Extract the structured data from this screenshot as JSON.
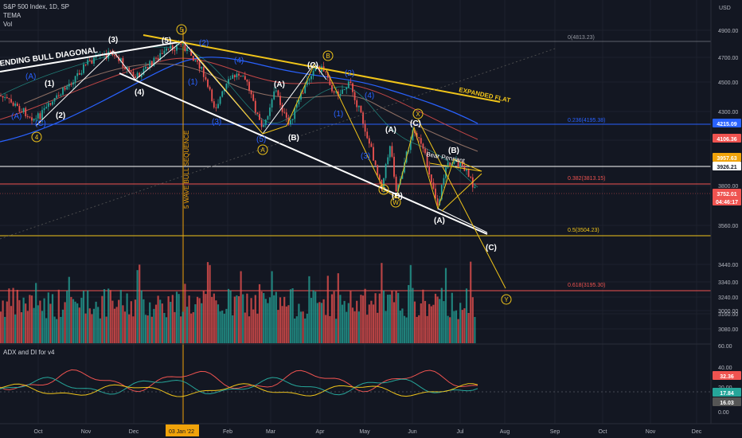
{
  "legend": {
    "symbol": "S&P 500 Index, 1D, SP",
    "tema": "TEMA",
    "vol": "Vol"
  },
  "adx_legend": "ADX and DI for v4",
  "currency": "USD",
  "price_ticks": [
    "4900.00",
    "4700.00",
    "4500.00",
    "4300.00",
    "4100.00",
    "3800.00",
    "3560.00",
    "3440.00",
    "3340.00",
    "3240.00",
    "3160.00",
    "3080.00",
    "3000.00"
  ],
  "adx_ticks": [
    "60.00",
    "40.00",
    "20.00",
    "0.00"
  ],
  "x_ticks": [
    "Oct",
    "Nov",
    "Dec",
    "03 Jan '22",
    "Feb",
    "Mar",
    "Apr",
    "May",
    "Jun",
    "Jul",
    "Aug",
    "Sep",
    "Oct",
    "Nov",
    "Dec"
  ],
  "fib_labels": {
    "f0": "0(4813.23)",
    "f236": "0.236(4195.38)",
    "f382": "0.382(3813.15)",
    "f5": "0.5(3504.23)",
    "f618": "0.618(3195.30)"
  },
  "price_tags": {
    "t1": "4215.09",
    "t2": "4106.36",
    "t3": "3957.63",
    "t4": "3926.21",
    "t5": "3752.01",
    "t6": "04:46:17"
  },
  "adx_tags": {
    "a1": "32.36",
    "a2": "17.84",
    "a3": "16.03"
  },
  "annotations": {
    "ending_diagonal": "ENDING BULL DIAGONAL",
    "expanded_flat": "EXPANDED FLAT",
    "bear_pennant": "Bear Pennant",
    "wave_seq": "5 WAVE BULL SEQUENCE",
    "w1": "(1)",
    "w2": "(2)",
    "w3": "(3)",
    "w4": "(4)",
    "w5": "(5)",
    "w1b": "(1)",
    "w2b": "(2)",
    "wA": "(A)",
    "wB": "(B)",
    "wC": "(C)",
    "wAb": "(A)",
    "wBb": "(B)",
    "wCb": "(C)",
    "wA3": "(A)",
    "wB3": "(B)",
    "wC3": "(C)",
    "b4": "(4)",
    "b1": "(1)",
    "b2": "(2)",
    "b3": "(3)",
    "b5": "(5)",
    "bA": "(A)",
    "bB": "(B)",
    "bC": "(C)",
    "c4": "4",
    "c5": "5",
    "cA": "A",
    "cB": "B",
    "cX": "X",
    "cW": "W",
    "cC": "C",
    "cY": "Y"
  },
  "chart_data": {
    "type": "candlestick",
    "title": "S&P 500 Index, 1D, SP",
    "y_scale": "log",
    "ylim": [
      2960,
      5000
    ],
    "fib_levels": [
      {
        "ratio": 0,
        "price": 4813.23
      },
      {
        "ratio": 0.236,
        "price": 4195.38
      },
      {
        "ratio": 0.382,
        "price": 3813.15
      },
      {
        "ratio": 0.5,
        "price": 3504.23
      },
      {
        "ratio": 0.618,
        "price": 3195.3
      }
    ],
    "last_price": 3752.01,
    "indicators": [
      "TEMA",
      "Vol",
      "ADX and DI for v4"
    ],
    "adx_values": {
      "adx": 32.36,
      "di_plus": 17.84,
      "di_minus": 16.03
    },
    "colors": {
      "up": "#26a69a",
      "down": "#ef5350",
      "background": "#131722"
    }
  }
}
